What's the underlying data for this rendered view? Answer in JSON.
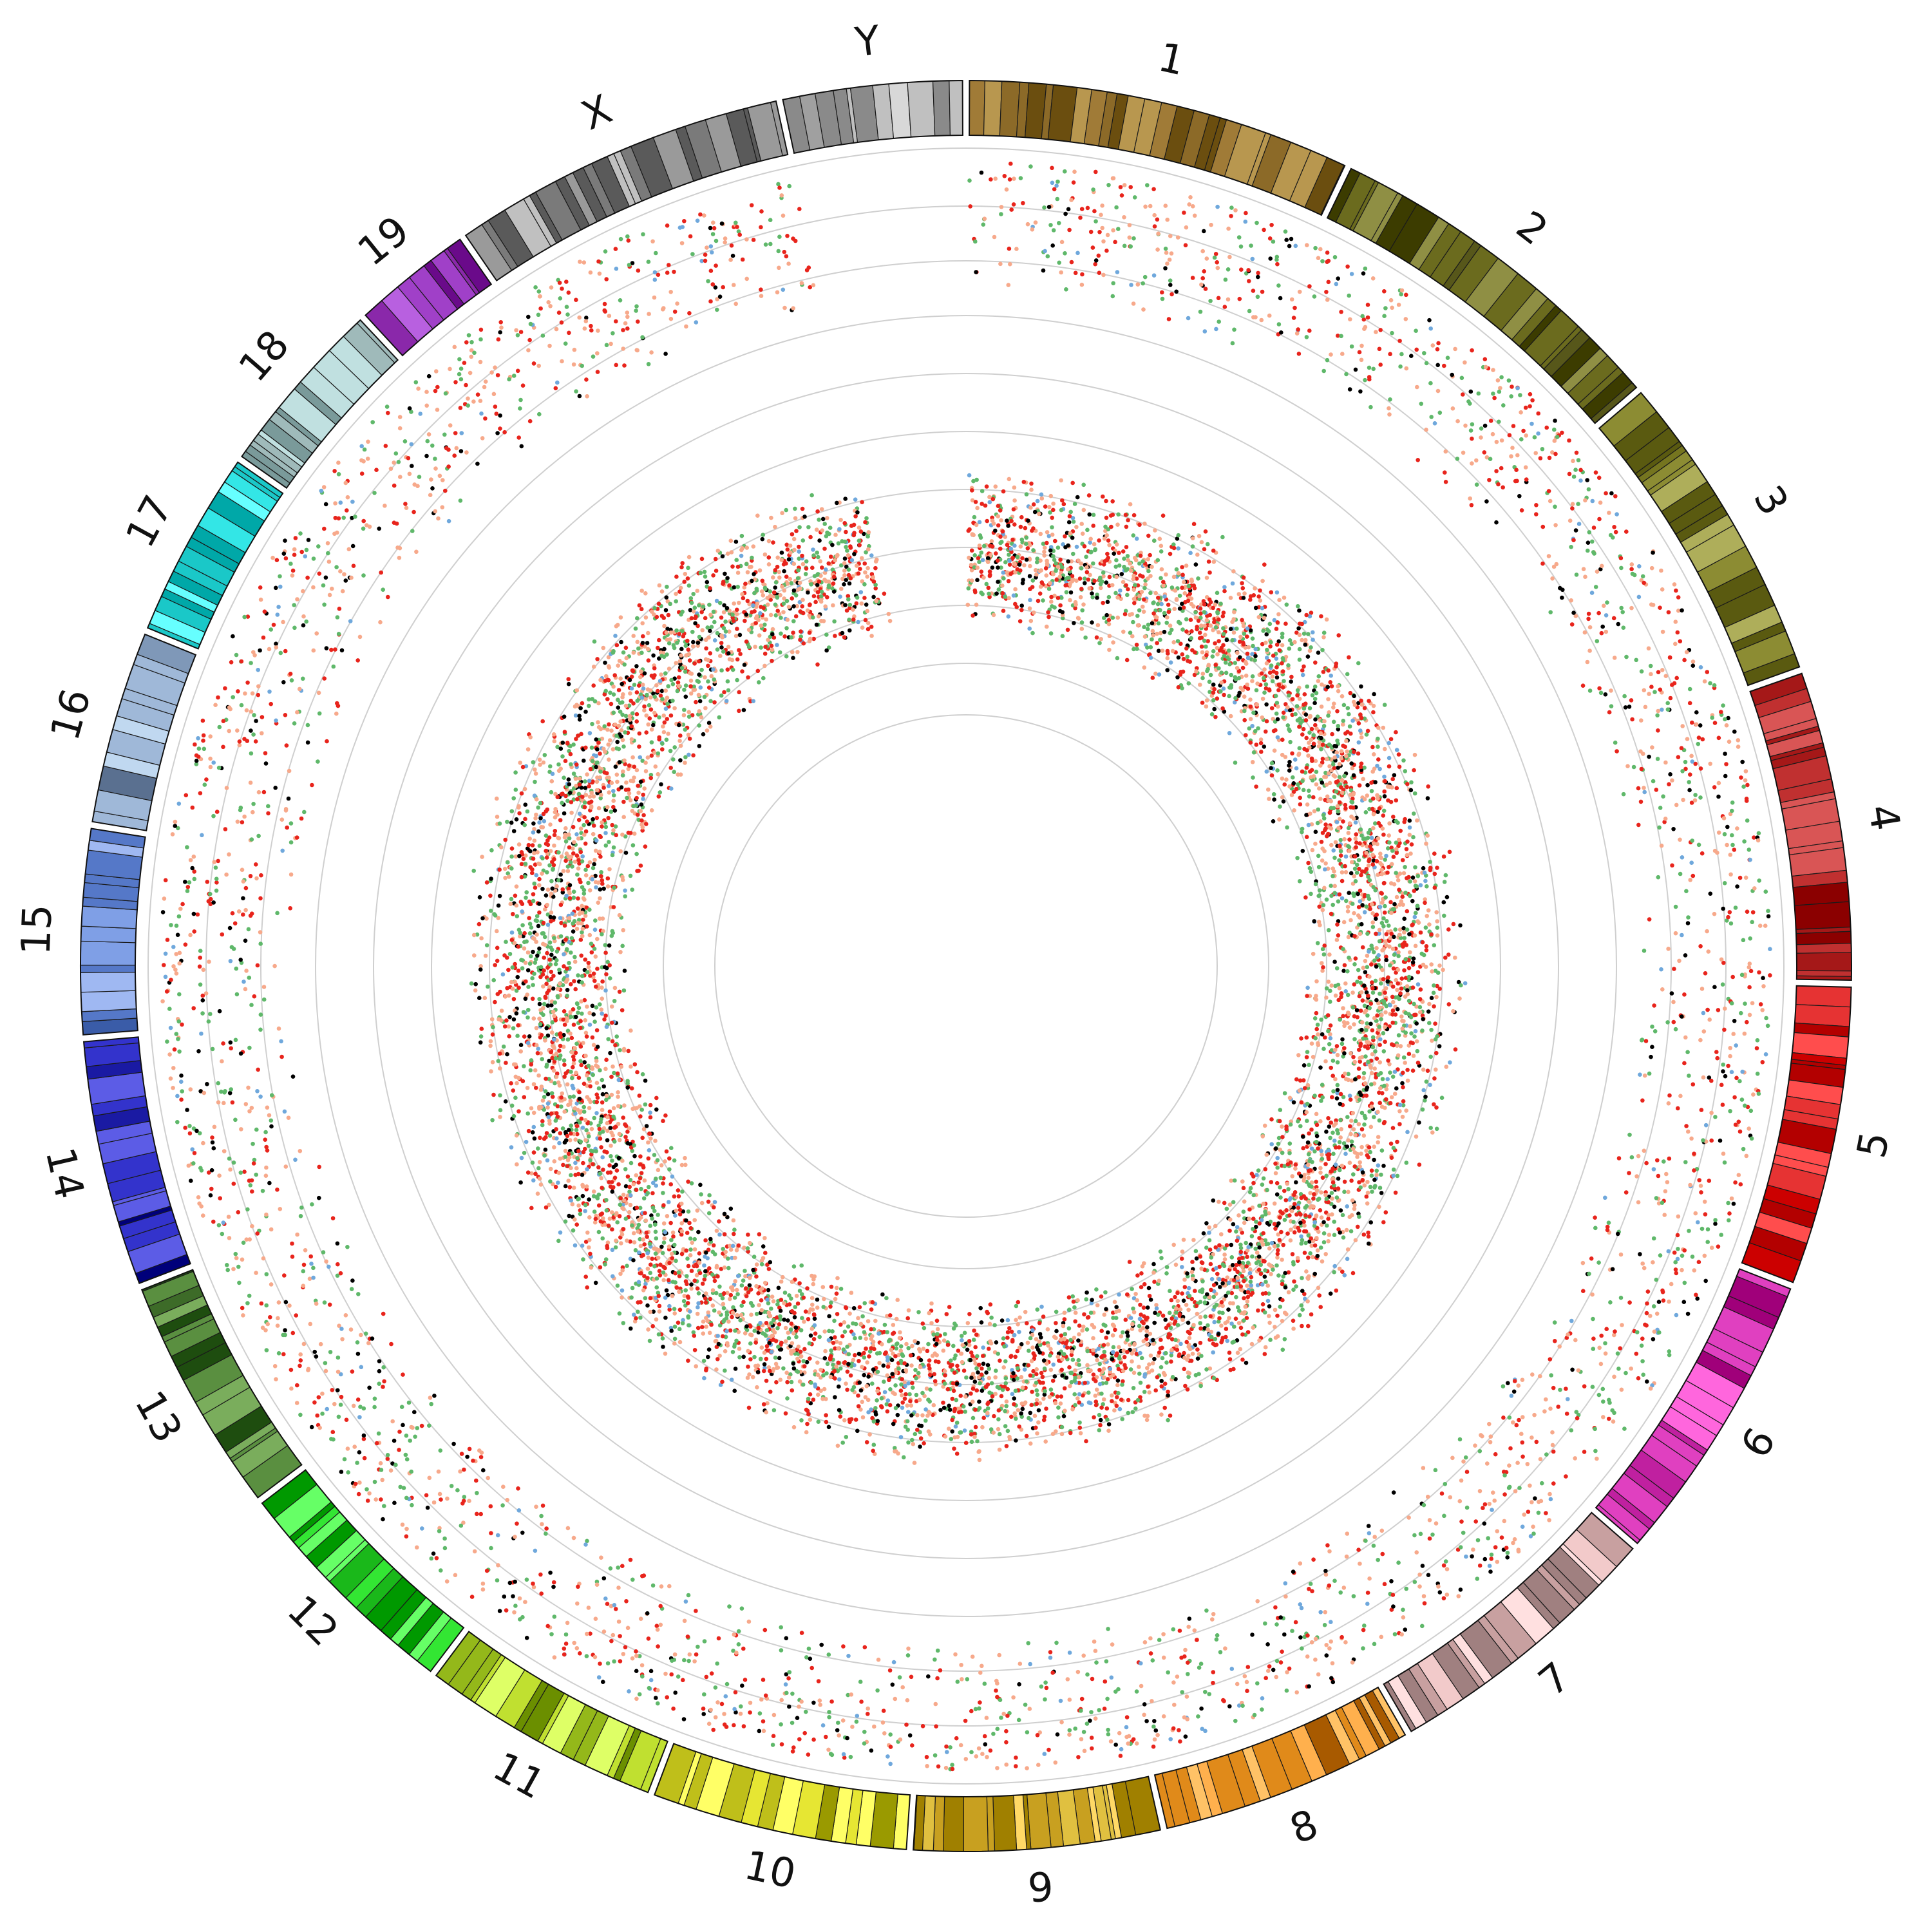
{
  "figure": {
    "type": "circos-genome-plot",
    "chromosomes": [
      {
        "id": "1",
        "label": "1",
        "size": 195,
        "colors": [
          "#6b4e0f",
          "#8c6a28",
          "#b8974f",
          "#a07b37"
        ]
      },
      {
        "id": "2",
        "label": "2",
        "size": 182,
        "colors": [
          "#3c3c00",
          "#6b6b1e",
          "#8f8f44",
          "#57571a"
        ]
      },
      {
        "id": "3",
        "label": "3",
        "size": 160,
        "colors": [
          "#5a5a10",
          "#8c8c33",
          "#aeae5a",
          "#75751f"
        ]
      },
      {
        "id": "4",
        "label": "4",
        "size": 157,
        "colors": [
          "#8b0000",
          "#c03030",
          "#d95555",
          "#a51818"
        ]
      },
      {
        "id": "5",
        "label": "5",
        "size": 152,
        "colors": [
          "#cc0000",
          "#ff4d4d",
          "#e63333",
          "#b30000"
        ]
      },
      {
        "id": "6",
        "label": "6",
        "size": 150,
        "colors": [
          "#a0007a",
          "#e040c0",
          "#ff66dd",
          "#c020a0"
        ]
      },
      {
        "id": "7",
        "label": "7",
        "size": 145,
        "colors": [
          "#a08080",
          "#f2caca",
          "#ffe0e0",
          "#c8a0a0"
        ]
      },
      {
        "id": "8",
        "label": "8",
        "size": 129,
        "colors": [
          "#a85a00",
          "#ffb04d",
          "#e08a1a",
          "#ffc266"
        ]
      },
      {
        "id": "9",
        "label": "9",
        "size": 125,
        "colors": [
          "#a08000",
          "#e0c040",
          "#ffd966",
          "#c8a020"
        ]
      },
      {
        "id": "10",
        "label": "10",
        "size": 130,
        "colors": [
          "#9a9a00",
          "#e6e633",
          "#ffff66",
          "#bfbf1a"
        ]
      },
      {
        "id": "11",
        "label": "11",
        "size": 122,
        "colors": [
          "#6b8f00",
          "#c0e030",
          "#deff66",
          "#94b81a"
        ]
      },
      {
        "id": "12",
        "label": "12",
        "size": 120,
        "colors": [
          "#009900",
          "#33e633",
          "#66ff66",
          "#1ab81a"
        ]
      },
      {
        "id": "13",
        "label": "13",
        "size": 120,
        "colors": [
          "#1e4d0f",
          "#5a8f40",
          "#7aad5c",
          "#3d6b28"
        ]
      },
      {
        "id": "14",
        "label": "14",
        "size": 125,
        "colors": [
          "#00007a",
          "#3333cc",
          "#5c5ce6",
          "#1a1aa3"
        ]
      },
      {
        "id": "15",
        "label": "15",
        "size": 104,
        "colors": [
          "#3a5ca8",
          "#7f9fe6",
          "#9fb8f2",
          "#5578c8"
        ]
      },
      {
        "id": "16",
        "label": "16",
        "size": 98,
        "colors": [
          "#5a7090",
          "#9fb8d8",
          "#c0d8f0",
          "#7f98b8"
        ]
      },
      {
        "id": "17",
        "label": "17",
        "size": 95,
        "colors": [
          "#00a8a8",
          "#33e6e6",
          "#66ffff",
          "#1ac8c8"
        ]
      },
      {
        "id": "18",
        "label": "18",
        "size": 91,
        "colors": [
          "#7a9a9a",
          "#c0e0e0",
          "#e0ffff",
          "#9fbaba"
        ]
      },
      {
        "id": "19",
        "label": "19",
        "size": 61,
        "colors": [
          "#6a0a8a",
          "#a040c8",
          "#b860e0",
          "#8a28aa"
        ]
      },
      {
        "id": "X",
        "label": "X",
        "size": 171,
        "colors": [
          "#5a5a5a",
          "#9a9a9a",
          "#c0c0c0",
          "#7a7a7a"
        ]
      },
      {
        "id": "Y",
        "label": "Y",
        "size": 91,
        "colors": [
          "#8a8a8a",
          "#c0c0c0",
          "#d8d8d8",
          "#a0a0a0"
        ]
      }
    ],
    "tracks": [
      {
        "name": "outer-scatter",
        "level": "outer",
        "density": 1.0
      },
      {
        "name": "inner-scatter",
        "level": "inner",
        "density": 3.2
      }
    ],
    "point_colors": [
      "#e8241c",
      "#f7a98b",
      "#5fb86a",
      "#000000",
      "#6fa8dc"
    ],
    "point_color_weights": [
      0.28,
      0.3,
      0.26,
      0.1,
      0.06
    ],
    "ring_color": "#cfcfcf"
  }
}
